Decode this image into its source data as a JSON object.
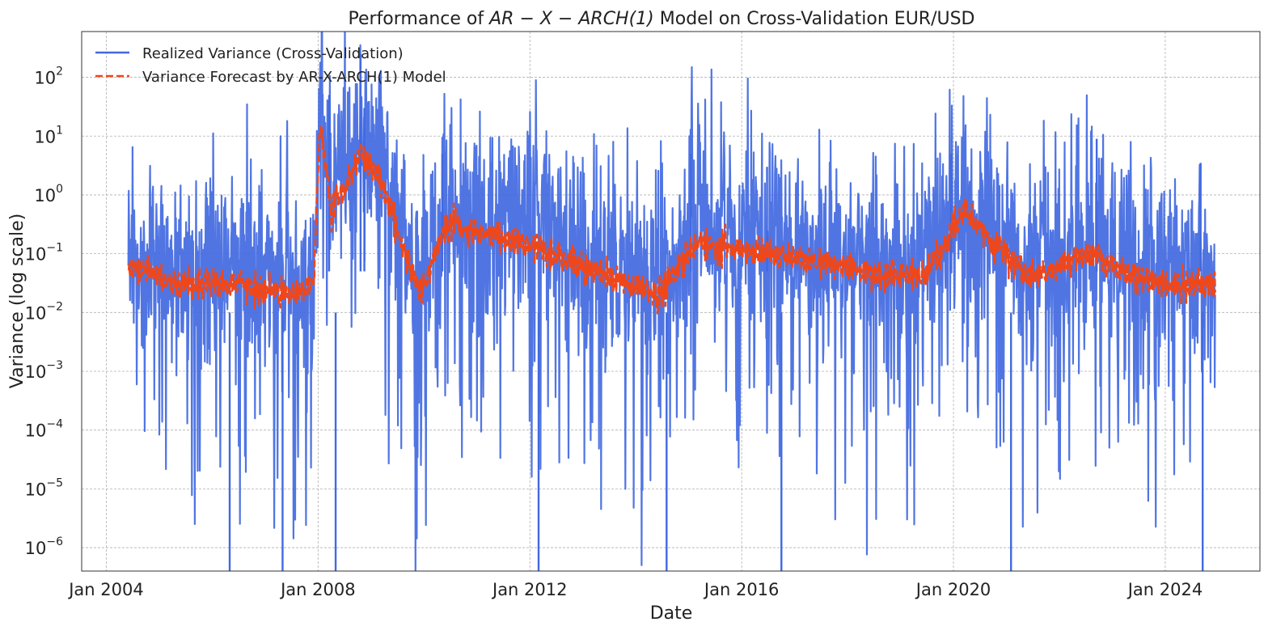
{
  "chart_data": {
    "type": "line",
    "title_prefix": "Performance of ",
    "title_math": "AR − X − ARCH(1)",
    "title_suffix": " Model on Cross-Validation EUR/USD",
    "xlabel": "Date",
    "ylabel": "Variance (log scale)",
    "yscale": "log",
    "ylim": [
      4e-07,
      600
    ],
    "xlim": [
      "2003-07-15",
      "2025-10-15"
    ],
    "grid": true,
    "legend_position": "upper-left",
    "x_ticks": [
      {
        "date": "2004-01-01",
        "label": "Jan 2004"
      },
      {
        "date": "2008-01-01",
        "label": "Jan 2008"
      },
      {
        "date": "2012-01-01",
        "label": "Jan 2012"
      },
      {
        "date": "2016-01-01",
        "label": "Jan 2016"
      },
      {
        "date": "2020-01-01",
        "label": "Jan 2020"
      },
      {
        "date": "2024-01-01",
        "label": "Jan 2024"
      }
    ],
    "y_ticks": [
      {
        "value": 100.0,
        "base": "10",
        "exp": "2"
      },
      {
        "value": 10.0,
        "base": "10",
        "exp": "1"
      },
      {
        "value": 1.0,
        "base": "10",
        "exp": "0"
      },
      {
        "value": 0.1,
        "base": "10",
        "exp": "−1"
      },
      {
        "value": 0.01,
        "base": "10",
        "exp": "−2"
      },
      {
        "value": 0.001,
        "base": "10",
        "exp": "−3"
      },
      {
        "value": 0.0001,
        "base": "10",
        "exp": "−4"
      },
      {
        "value": 1e-05,
        "base": "10",
        "exp": "−5"
      },
      {
        "value": 1e-06,
        "base": "10",
        "exp": "−6"
      }
    ],
    "series": [
      {
        "name": "Realized Variance (Cross-Validation)",
        "color": "#4169e1",
        "style": "solid",
        "approx_range": [
          "2004-06-01",
          "2024-12-10"
        ],
        "typical_center": 0.05,
        "spikes": [
          {
            "date": "2008-03-17",
            "value": 50
          },
          {
            "date": "2008-10-20",
            "value": 250
          },
          {
            "date": "2008-11-15",
            "value": 30
          },
          {
            "date": "2010-05-07",
            "value": 5
          },
          {
            "date": "2015-01-15",
            "value": 5
          },
          {
            "date": "2016-06-24",
            "value": 3
          },
          {
            "date": "2019-12-15",
            "value": 5
          },
          {
            "date": "2022-09-15",
            "value": 9
          },
          {
            "date": "2024-09-01",
            "value": 3.5
          }
        ],
        "min_values": [
          {
            "date": "2006-05-01",
            "value": 1e-06
          },
          {
            "date": "2007-05-01",
            "value": 1e-06
          },
          {
            "date": "2008-05-01",
            "value": 1e-06
          },
          {
            "date": "2012-03-01",
            "value": 1e-06
          },
          {
            "date": "2014-08-01",
            "value": 1e-06
          },
          {
            "date": "2016-10-01",
            "value": 1e-06
          },
          {
            "date": "2021-02-01",
            "value": 1e-06
          },
          {
            "date": "2024-09-15",
            "value": 1e-06
          }
        ]
      },
      {
        "name": "Variance Forecast by AR-X-ARCH(1) Model",
        "color": "#f0471a",
        "style": "dashed",
        "approx_range": [
          "2004-06-01",
          "2024-12-10"
        ],
        "levels": [
          {
            "date": "2004-06-01",
            "value": 0.06
          },
          {
            "date": "2005-06-01",
            "value": 0.03
          },
          {
            "date": "2006-06-01",
            "value": 0.03
          },
          {
            "date": "2007-06-01",
            "value": 0.02
          },
          {
            "date": "2007-12-01",
            "value": 0.03
          },
          {
            "date": "2008-01-15",
            "value": 20
          },
          {
            "date": "2008-04-01",
            "value": 0.5
          },
          {
            "date": "2008-10-15",
            "value": 5
          },
          {
            "date": "2009-03-01",
            "value": 2
          },
          {
            "date": "2009-12-01",
            "value": 0.02
          },
          {
            "date": "2010-06-01",
            "value": 0.3
          },
          {
            "date": "2011-06-01",
            "value": 0.2
          },
          {
            "date": "2012-06-01",
            "value": 0.1
          },
          {
            "date": "2014-06-01",
            "value": 0.02
          },
          {
            "date": "2015-03-01",
            "value": 0.15
          },
          {
            "date": "2016-06-01",
            "value": 0.1
          },
          {
            "date": "2018-06-01",
            "value": 0.05
          },
          {
            "date": "2019-06-01",
            "value": 0.04
          },
          {
            "date": "2020-03-20",
            "value": 0.5
          },
          {
            "date": "2021-06-01",
            "value": 0.04
          },
          {
            "date": "2022-09-01",
            "value": 0.1
          },
          {
            "date": "2023-06-01",
            "value": 0.04
          },
          {
            "date": "2024-06-01",
            "value": 0.03
          }
        ]
      }
    ]
  }
}
